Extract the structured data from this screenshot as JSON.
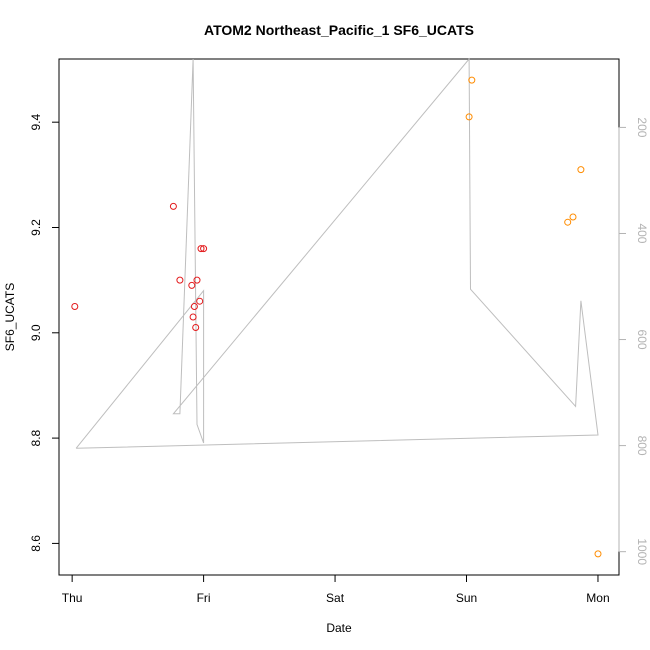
{
  "chart_data": {
    "type": "scatter",
    "title": "ATOM2 Northeast_Pacific_1 SF6_UCATS",
    "xlabel": "Date",
    "ylabel": "SF6_UCATS",
    "x_tick_labels": [
      "Thu",
      "Fri",
      "Sat",
      "Sun",
      "Mon"
    ],
    "x_tick_values": [
      0,
      1,
      2,
      3,
      4
    ],
    "xlim": [
      -0.1,
      4.16
    ],
    "ylim": [
      8.54,
      9.52
    ],
    "y_ticks": [
      8.6,
      8.8,
      9.0,
      9.2,
      9.4
    ],
    "y_tick_labels": [
      "8.6",
      "8.8",
      "9.0",
      "9.2",
      "9.4"
    ],
    "y2_ticks": [
      200,
      400,
      600,
      800,
      1000
    ],
    "y2_tick_labels": [
      "200",
      "400",
      "600",
      "800",
      "1000"
    ],
    "y2_lim": [
      1044,
      71
    ],
    "colors": {
      "red_points": "#e31a1c",
      "orange_points": "#ff8c00",
      "pressure_line": "#bebebe"
    },
    "series": [
      {
        "points": [
          [
            0.02,
            9.05
          ],
          [
            0.77,
            9.24
          ],
          [
            0.82,
            9.1
          ],
          [
            0.91,
            9.09
          ],
          [
            0.92,
            9.03
          ],
          [
            0.93,
            9.05
          ],
          [
            0.94,
            9.01
          ],
          [
            0.95,
            9.1
          ],
          [
            0.97,
            9.06
          ],
          [
            0.98,
            9.16
          ],
          [
            1.0,
            9.16
          ]
        ]
      },
      {
        "points": [
          [
            3.02,
            9.41
          ],
          [
            3.04,
            9.48
          ],
          [
            3.77,
            9.21
          ],
          [
            3.81,
            9.22
          ],
          [
            3.87,
            9.31
          ],
          [
            4.0,
            8.58
          ]
        ]
      }
    ],
    "pressure_line": [
      [
        0.03,
        805
      ],
      [
        1.0,
        508
      ],
      [
        1.0,
        795
      ],
      [
        0.95,
        760
      ],
      [
        0.92,
        71
      ],
      [
        0.92,
        71
      ],
      [
        0.82,
        740
      ],
      [
        0.77,
        740
      ],
      [
        3.02,
        71
      ],
      [
        3.03,
        505
      ],
      [
        3.83,
        726
      ],
      [
        3.87,
        527
      ],
      [
        4.0,
        780
      ],
      [
        0.03,
        805
      ]
    ]
  }
}
